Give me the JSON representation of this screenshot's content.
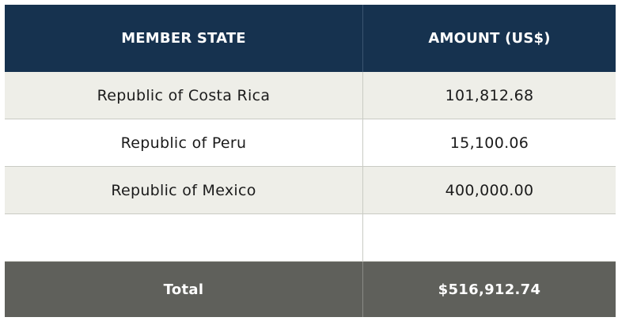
{
  "table": {
    "header": {
      "member_state": "MEMBER STATE",
      "amount": "AMOUNT (US$)"
    },
    "rows": [
      {
        "member_state": "Republic of Costa Rica",
        "amount": "101,812.68"
      },
      {
        "member_state": "Republic of Peru",
        "amount": "15,100.06"
      },
      {
        "member_state": "Republic of Mexico",
        "amount": "400,000.00"
      },
      {
        "member_state": "",
        "amount": ""
      }
    ],
    "total": {
      "label": "Total",
      "amount": "$516,912.74"
    }
  },
  "colors": {
    "header_bg": "#16324f",
    "shaded_row_bg": "#eeeee8",
    "total_bg": "#5f605b"
  }
}
